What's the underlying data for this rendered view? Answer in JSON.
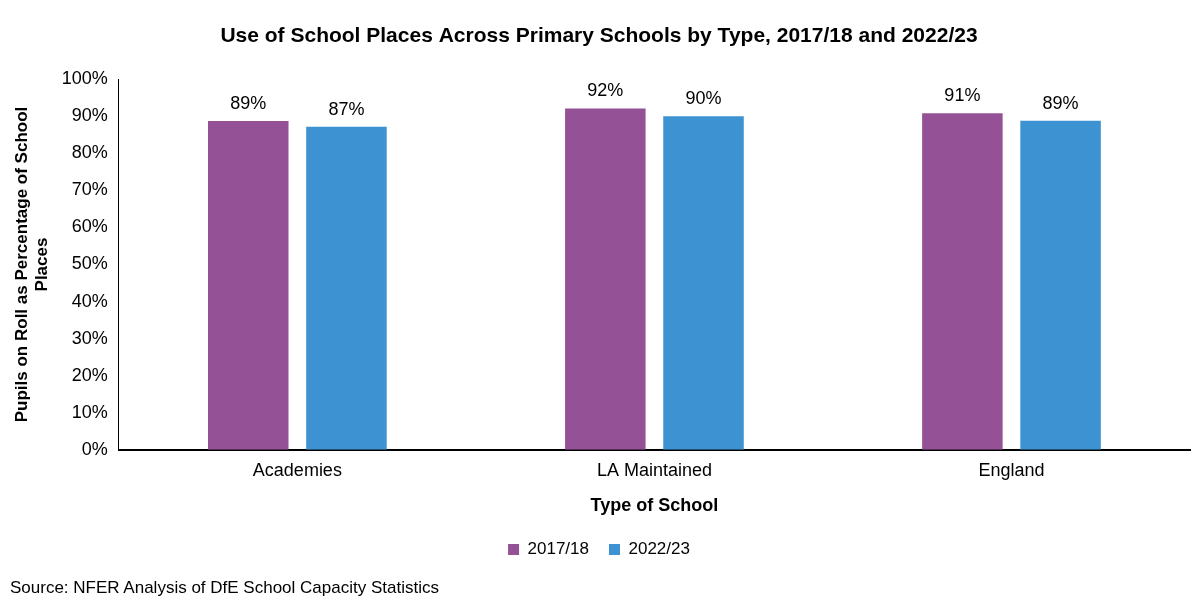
{
  "chart_data": {
    "type": "bar",
    "title": "Use of School Places Across Primary Schools by Type, 2017/18 and 2022/23",
    "x_label": "Type of School",
    "y_label": "Pupils on Roll as Percentage of School Places",
    "source": "Source: NFER Analysis of DfE School Capacity Statistics",
    "categories": [
      "Academies",
      "LA Maintained",
      "England"
    ],
    "series": [
      {
        "name": "2017/18",
        "color": "#955196",
        "values": [
          88.7,
          92.1,
          90.8
        ],
        "value_labels": [
          "89%",
          "92%",
          "91%"
        ]
      },
      {
        "name": "2022/23",
        "color": "#3d93d1",
        "values": [
          87.2,
          90.0,
          88.8
        ],
        "value_labels": [
          "87%",
          "90%",
          "89%"
        ]
      }
    ],
    "ylim": [
      0,
      100
    ],
    "yticks": [
      {
        "value": 0,
        "label": "0%"
      },
      {
        "value": 10,
        "label": "10%"
      },
      {
        "value": 20,
        "label": "20%"
      },
      {
        "value": 30,
        "label": "30%"
      },
      {
        "value": 40,
        "label": "40%"
      },
      {
        "value": 50,
        "label": "50%"
      },
      {
        "value": 60,
        "label": "60%"
      },
      {
        "value": 70,
        "label": "70%"
      },
      {
        "value": 80,
        "label": "80%"
      },
      {
        "value": 90,
        "label": "90%"
      },
      {
        "value": 100,
        "label": "100%"
      }
    ],
    "grid": false,
    "legend": "bottom",
    "data_labels": true
  }
}
